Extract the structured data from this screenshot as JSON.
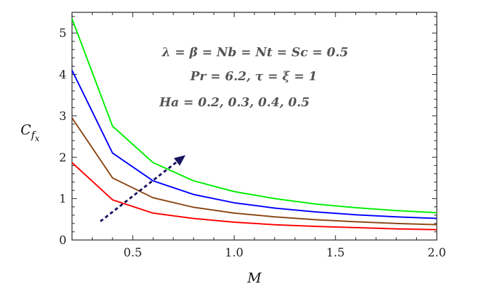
{
  "chart_data": {
    "type": "line",
    "xlabel": "M",
    "ylabel": "C_fx",
    "xlim": [
      0.2,
      2.0
    ],
    "ylim": [
      0,
      5.5
    ],
    "xticks": [
      0.5,
      1.0,
      1.5,
      2.0
    ],
    "xtick_labels": [
      "0.5",
      "1.0",
      "1.5",
      "2.0"
    ],
    "yticks": [
      0,
      1,
      2,
      3,
      4,
      5
    ],
    "ytick_labels": [
      "0",
      "1",
      "2",
      "3",
      "4",
      "5"
    ],
    "grid": false,
    "x": [
      0.2,
      0.4,
      0.6,
      0.8,
      1.0,
      1.2,
      1.4,
      1.6,
      1.8,
      2.0
    ],
    "series": [
      {
        "color": "#ff0000",
        "values": [
          1.87,
          0.97,
          0.65,
          0.52,
          0.43,
          0.37,
          0.33,
          0.3,
          0.27,
          0.25
        ]
      },
      {
        "color": "#8b4513",
        "values": [
          2.95,
          1.5,
          1.02,
          0.79,
          0.65,
          0.56,
          0.49,
          0.44,
          0.4,
          0.37
        ]
      },
      {
        "color": "#0000ff",
        "values": [
          4.1,
          2.1,
          1.43,
          1.1,
          0.9,
          0.77,
          0.68,
          0.61,
          0.56,
          0.52
        ]
      },
      {
        "color": "#00ee00",
        "values": [
          5.35,
          2.75,
          1.87,
          1.43,
          1.17,
          1.0,
          0.87,
          0.78,
          0.71,
          0.66
        ]
      }
    ],
    "annotations": [
      "λ = β = Nb = Nt = Sc = 0.5",
      "Pr = 6.2, τ = ξ = 1",
      "Ha = 0.2, 0.3, 0.4, 0.5"
    ],
    "arrow": {
      "from": {
        "x": 0.34,
        "y": 0.45
      },
      "to": {
        "x": 0.76,
        "y": 2.05
      },
      "color": "#1a1460",
      "style": "dashed"
    }
  }
}
